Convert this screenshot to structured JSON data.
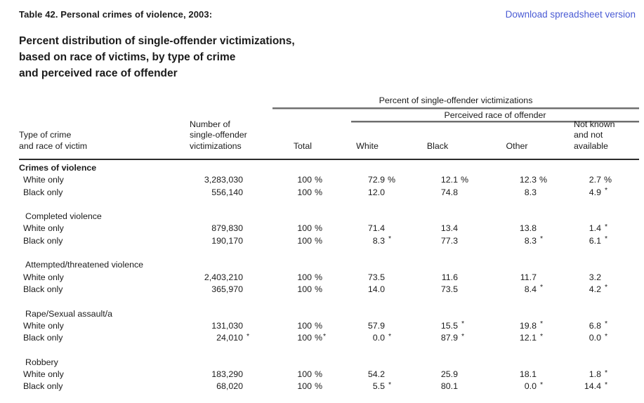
{
  "page": {
    "table_label": "Table 42. Personal crimes of violence, 2003:",
    "download_link": "Download spreadsheet version",
    "link_color": "#4a5bd4",
    "title_lines": [
      "Percent distribution of single-offender victimizations,",
      "based on race of victims, by type of crime",
      "and perceived race of offender"
    ]
  },
  "table": {
    "span_header_1": "Percent of single-offender victimizations",
    "span_header_2": "Perceived race of offender",
    "columns": {
      "crime": "Type of crime\nand race of victim",
      "number": "Number of\nsingle-offender\nvictimizations",
      "total": "Total",
      "white": "White",
      "black": "Black",
      "other": "Other",
      "notknown": "Not known\nand not\navailable"
    },
    "sections": [
      {
        "label": "Crimes of violence",
        "bold": true,
        "rows": [
          {
            "label": "White only",
            "cells": [
              [
                "3,283,030",
                ""
              ],
              [
                "100",
                "%"
              ],
              [
                "72.9",
                "%"
              ],
              [
                "12.1",
                "%"
              ],
              [
                "12.3",
                "%"
              ],
              [
                "2.7",
                "%"
              ]
            ]
          },
          {
            "label": "Black only",
            "cells": [
              [
                "556,140",
                ""
              ],
              [
                "100",
                "%"
              ],
              [
                "12.0",
                ""
              ],
              [
                "74.8",
                ""
              ],
              [
                "8.3",
                ""
              ],
              [
                "4.9",
                "*"
              ]
            ]
          }
        ]
      },
      {
        "label": "Completed violence",
        "bold": false,
        "rows": [
          {
            "label": "White only",
            "cells": [
              [
                "879,830",
                ""
              ],
              [
                "100",
                "%"
              ],
              [
                "71.4",
                ""
              ],
              [
                "13.4",
                ""
              ],
              [
                "13.8",
                ""
              ],
              [
                "1.4",
                "*"
              ]
            ]
          },
          {
            "label": "Black only",
            "cells": [
              [
                "190,170",
                ""
              ],
              [
                "100",
                "%"
              ],
              [
                "8.3",
                "*"
              ],
              [
                "77.3",
                ""
              ],
              [
                "8.3",
                "*"
              ],
              [
                "6.1",
                "*"
              ]
            ]
          }
        ]
      },
      {
        "label": "Attempted/threatened violence",
        "bold": false,
        "rows": [
          {
            "label": "White only",
            "cells": [
              [
                "2,403,210",
                ""
              ],
              [
                "100",
                "%"
              ],
              [
                "73.5",
                ""
              ],
              [
                "11.6",
                ""
              ],
              [
                "11.7",
                ""
              ],
              [
                "3.2",
                ""
              ]
            ]
          },
          {
            "label": "Black only",
            "cells": [
              [
                "365,970",
                ""
              ],
              [
                "100",
                "%"
              ],
              [
                "14.0",
                ""
              ],
              [
                "73.5",
                ""
              ],
              [
                "8.4",
                "*"
              ],
              [
                "4.2",
                "*"
              ]
            ]
          }
        ]
      },
      {
        "label": "Rape/Sexual assault/a",
        "bold": false,
        "rows": [
          {
            "label": "White only",
            "cells": [
              [
                "131,030",
                ""
              ],
              [
                "100",
                "%"
              ],
              [
                "57.9",
                ""
              ],
              [
                "15.5",
                "*"
              ],
              [
                "19.8",
                "*"
              ],
              [
                "6.8",
                "*"
              ]
            ]
          },
          {
            "label": "Black only",
            "cells": [
              [
                "24,010",
                "*"
              ],
              [
                "100",
                "%*"
              ],
              [
                "0.0",
                "*"
              ],
              [
                "87.9",
                "*"
              ],
              [
                "12.1",
                "*"
              ],
              [
                "0.0",
                "*"
              ]
            ]
          }
        ]
      },
      {
        "label": "Robbery",
        "bold": false,
        "rows": [
          {
            "label": "White only",
            "cells": [
              [
                "183,290",
                ""
              ],
              [
                "100",
                "%"
              ],
              [
                "54.2",
                ""
              ],
              [
                "25.9",
                ""
              ],
              [
                "18.1",
                ""
              ],
              [
                "1.8",
                "*"
              ]
            ]
          },
          {
            "label": "Black only",
            "cells": [
              [
                "68,020",
                ""
              ],
              [
                "100",
                "%"
              ],
              [
                "5.5",
                "*"
              ],
              [
                "80.1",
                ""
              ],
              [
                "0.0",
                "*"
              ],
              [
                "14.4",
                "*"
              ]
            ]
          }
        ]
      }
    ]
  }
}
